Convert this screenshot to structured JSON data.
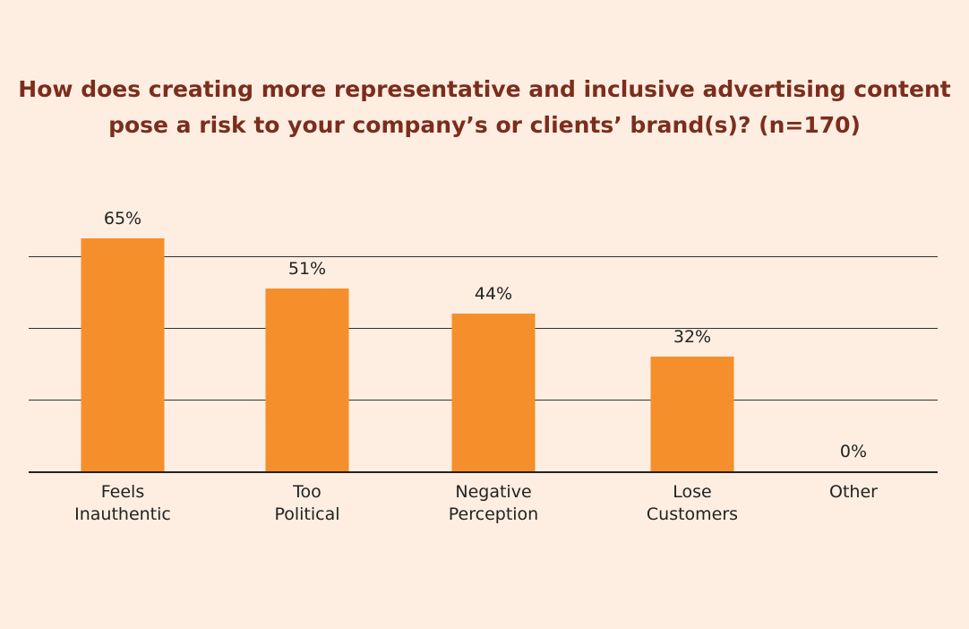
{
  "chart_data": {
    "type": "bar",
    "title_lines": [
      "How does creating more representative and inclusive advertising content",
      "pose a risk to your company’s or clients’ brand(s)? (n=170)"
    ],
    "categories": [
      [
        "Feels",
        "Inauthentic"
      ],
      [
        "Too",
        "Political"
      ],
      [
        "Negative",
        "Perception"
      ],
      [
        "Lose",
        "Customers"
      ],
      [
        "Other"
      ]
    ],
    "values": [
      65,
      51,
      44,
      32,
      0
    ],
    "value_labels": [
      "65%",
      "51%",
      "44%",
      "32%",
      "0%"
    ],
    "ylim": [
      0,
      100
    ],
    "unit": "%",
    "gridlines": [
      20,
      40,
      60
    ],
    "colors": {
      "bar": "#f58f2b",
      "grid": "#333333",
      "title": "#7b2d1e",
      "background": "#fdeee1"
    }
  }
}
